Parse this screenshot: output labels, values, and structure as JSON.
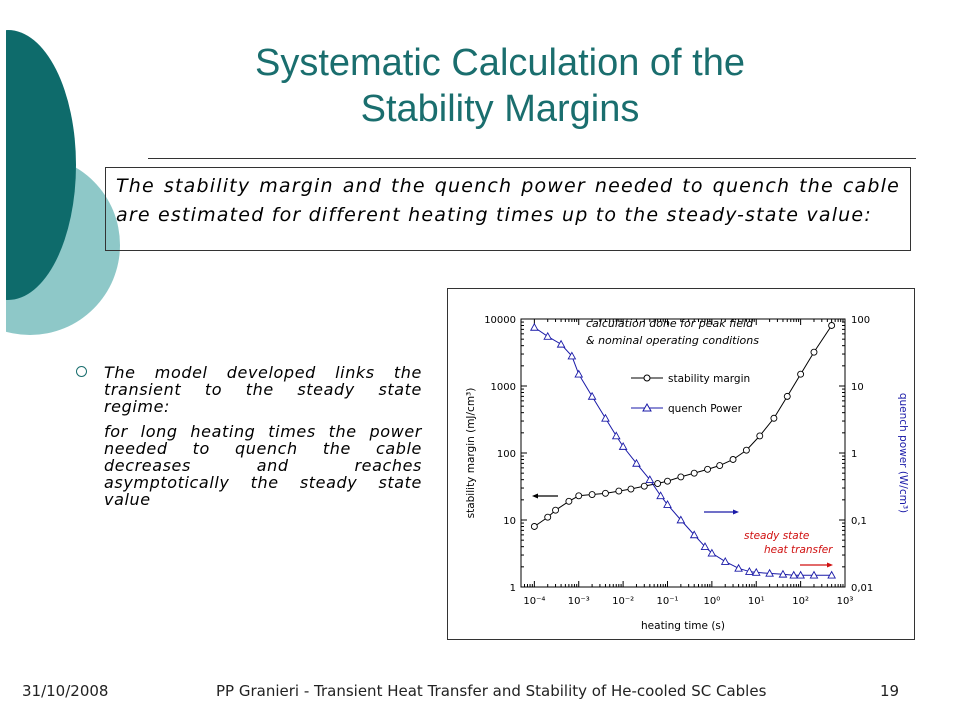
{
  "slide": {
    "title_line1": "Systematic Calculation of the",
    "title_line2": "Stability Margins",
    "intro": "The stability margin and the quench power needed to quench the cable are estimated for different heating times up to the steady-state value:",
    "bullet_main": "The model developed links the transient to the steady state regime:",
    "bullet_sub": "for long heating times the power needed to quench the cable decreases and reaches asymptotically the steady state value",
    "footer_date": "31/10/2008",
    "footer_center": "PP Granieri - Transient Heat Transfer and Stability of He-cooled SC Cables",
    "footer_page": "19",
    "colors": {
      "title": "#1a6e6e",
      "deco_dark": "#0e6b6b",
      "deco_light": "#8ec8c8"
    }
  },
  "chart_data": {
    "type": "line",
    "xlabel": "heating time (s)",
    "ylabel_left": "stability margin (mJ/cm³)",
    "ylabel_right": "quench power (W/cm³)",
    "x_scale": "log",
    "y_left_scale": "log",
    "y_right_scale": "log",
    "xlim": [
      5e-05,
      1000
    ],
    "ylim_left": [
      1,
      10000
    ],
    "ylim_right": [
      0.01,
      100
    ],
    "x_ticks": [
      "10⁻⁴",
      "10⁻³",
      "10⁻²",
      "10⁻¹",
      "10⁰",
      "10¹",
      "10²",
      "10³"
    ],
    "y_left_ticks": [
      "1",
      "10",
      "100",
      "1000",
      "10000"
    ],
    "y_right_ticks": [
      "0,01",
      "0,1",
      "1",
      "10",
      "100"
    ],
    "annotation": [
      "calculation done for peak field",
      "& nominal operating conditions"
    ],
    "steady_label": [
      "steady state",
      "heat transfer"
    ],
    "legend_position": "top-center",
    "series": [
      {
        "name": "stability margin",
        "axis": "left",
        "color": "#000000",
        "marker": "circle",
        "x": [
          0.0001,
          0.0002,
          0.0003,
          0.0006,
          0.001,
          0.002,
          0.004,
          0.008,
          0.015,
          0.03,
          0.06,
          0.1,
          0.2,
          0.4,
          0.8,
          1.5,
          3,
          6,
          12,
          25,
          50,
          100,
          200,
          500
        ],
        "y": [
          8,
          11,
          14,
          19,
          23,
          24,
          25,
          27,
          29,
          32,
          35,
          38,
          44,
          50,
          57,
          65,
          80,
          110,
          180,
          330,
          700,
          1500,
          3200,
          8000
        ]
      },
      {
        "name": "quench Power",
        "axis": "right",
        "color": "#1a1aa8",
        "marker": "triangle",
        "x": [
          0.0001,
          0.0002,
          0.0004,
          0.0007,
          0.001,
          0.002,
          0.004,
          0.007,
          0.01,
          0.02,
          0.04,
          0.07,
          0.1,
          0.2,
          0.4,
          0.7,
          1,
          2,
          4,
          7,
          10,
          20,
          40,
          70,
          100,
          200,
          500
        ],
        "y": [
          75,
          55,
          42,
          28,
          15,
          7,
          3.3,
          1.8,
          1.25,
          0.7,
          0.4,
          0.23,
          0.17,
          0.1,
          0.06,
          0.04,
          0.032,
          0.024,
          0.019,
          0.017,
          0.0165,
          0.016,
          0.0155,
          0.015,
          0.015,
          0.015,
          0.015
        ]
      }
    ]
  }
}
